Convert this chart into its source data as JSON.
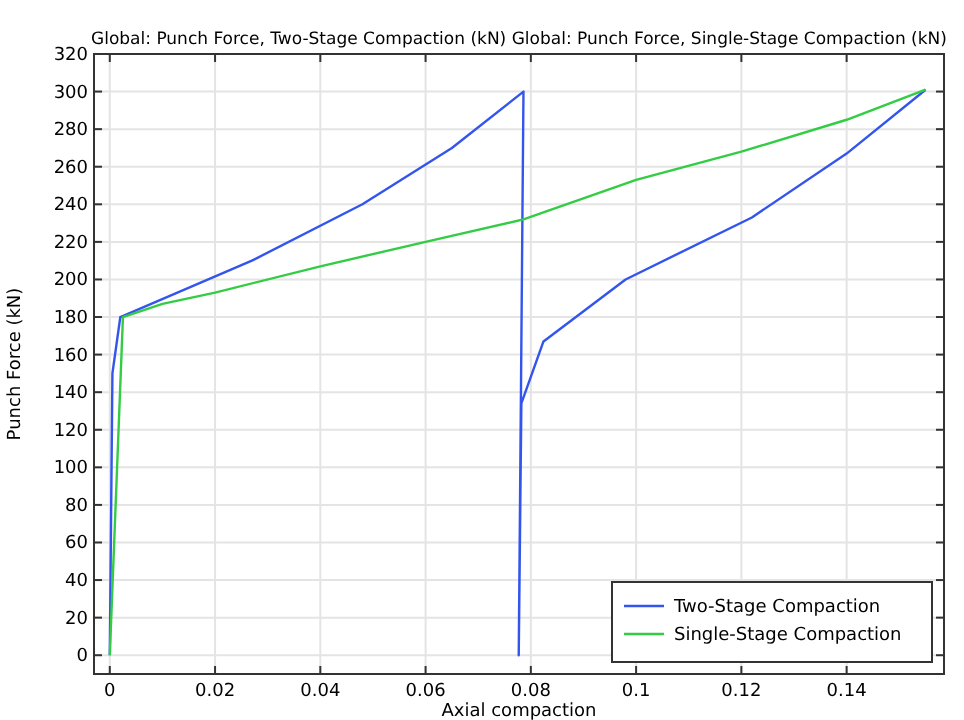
{
  "chart_data": {
    "type": "line",
    "title": "Global: Punch Force, Two-Stage Compaction (kN)  Global: Punch Force, Single-Stage Compaction (kN)",
    "xlabel": "Axial compaction",
    "ylabel": "Punch Force (kN)",
    "xlim": [
      -0.003,
      0.1585
    ],
    "ylim": [
      -10,
      320
    ],
    "xticks": [
      0,
      0.02,
      0.04,
      0.06,
      0.08,
      0.1,
      0.12,
      0.14
    ],
    "yticks": [
      0,
      20,
      40,
      60,
      80,
      100,
      120,
      140,
      160,
      180,
      200,
      220,
      240,
      260,
      280,
      300,
      320
    ],
    "grid": true,
    "legend": "bottom right",
    "series": [
      {
        "name": "Two-Stage Compaction",
        "color": "#3355ee",
        "x": [
          0,
          0.0005,
          0.002,
          0.027,
          0.048,
          0.065,
          0.0786,
          0.0777,
          0.0782,
          0.0824,
          0.098,
          0.122,
          0.14,
          0.155
        ],
        "values": [
          0,
          150,
          180,
          210,
          240,
          270,
          300,
          0,
          134,
          167,
          200,
          233,
          267,
          301
        ]
      },
      {
        "name": "Single-Stage Compaction",
        "color": "#33cc44",
        "x": [
          0,
          0.0025,
          0.01,
          0.02,
          0.04,
          0.06,
          0.0786,
          0.1,
          0.12,
          0.14,
          0.155
        ],
        "values": [
          0,
          180,
          187,
          193,
          207,
          220,
          232,
          253,
          268,
          285,
          301
        ]
      }
    ]
  }
}
